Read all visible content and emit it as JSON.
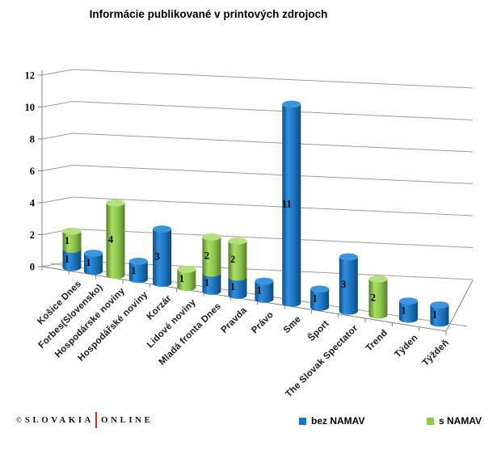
{
  "title": "Informácie publikované v printových zdrojoch",
  "footer": {
    "copyright": "©",
    "brand_left": "SLOVAKIA",
    "brand_right": "ONLINE",
    "divider_color": "#C0392B"
  },
  "chart_data": {
    "type": "bar",
    "subtype": "3d-cylinder-stacked",
    "title": "Informácie publikované v printových zdrojoch",
    "categories": [
      "Košice Dnes",
      "Forbes(Slovensko)",
      "Hospodárske noviny",
      "Hospodářské noviny",
      "Korzár",
      "Lidové noviny",
      "Mladá fronta Dnes",
      "Pravda",
      "Právo",
      "Sme",
      "Šport",
      "The Slovak Spectator",
      "Trend",
      "Týden",
      "Týždeň"
    ],
    "series": [
      {
        "name": "bez NAMAV",
        "color": "#1F74C0",
        "color_light": "#2F8FDE",
        "color_dark": "#0D4A7C",
        "top_color": "#3E94DC",
        "values": [
          1,
          1,
          0,
          1,
          3,
          0,
          1,
          1,
          1,
          11,
          1,
          3,
          0,
          1,
          1
        ]
      },
      {
        "name": "s NAMAV",
        "color": "#8CC84E",
        "color_light": "#A8DB61",
        "color_dark": "#577E2B",
        "top_color": "#B4E07E",
        "values": [
          1,
          0,
          4,
          0,
          0,
          1,
          2,
          2,
          0,
          0,
          0,
          0,
          2,
          0,
          0
        ]
      }
    ],
    "stacked": true,
    "ylim": [
      0,
      12
    ],
    "yticks": [
      0,
      2,
      4,
      6,
      8,
      10,
      12
    ],
    "grid": true,
    "grid_color": "#9A9A9A",
    "axis_color": "#808080",
    "label_color": "#000000",
    "legend_position": "bottom"
  }
}
